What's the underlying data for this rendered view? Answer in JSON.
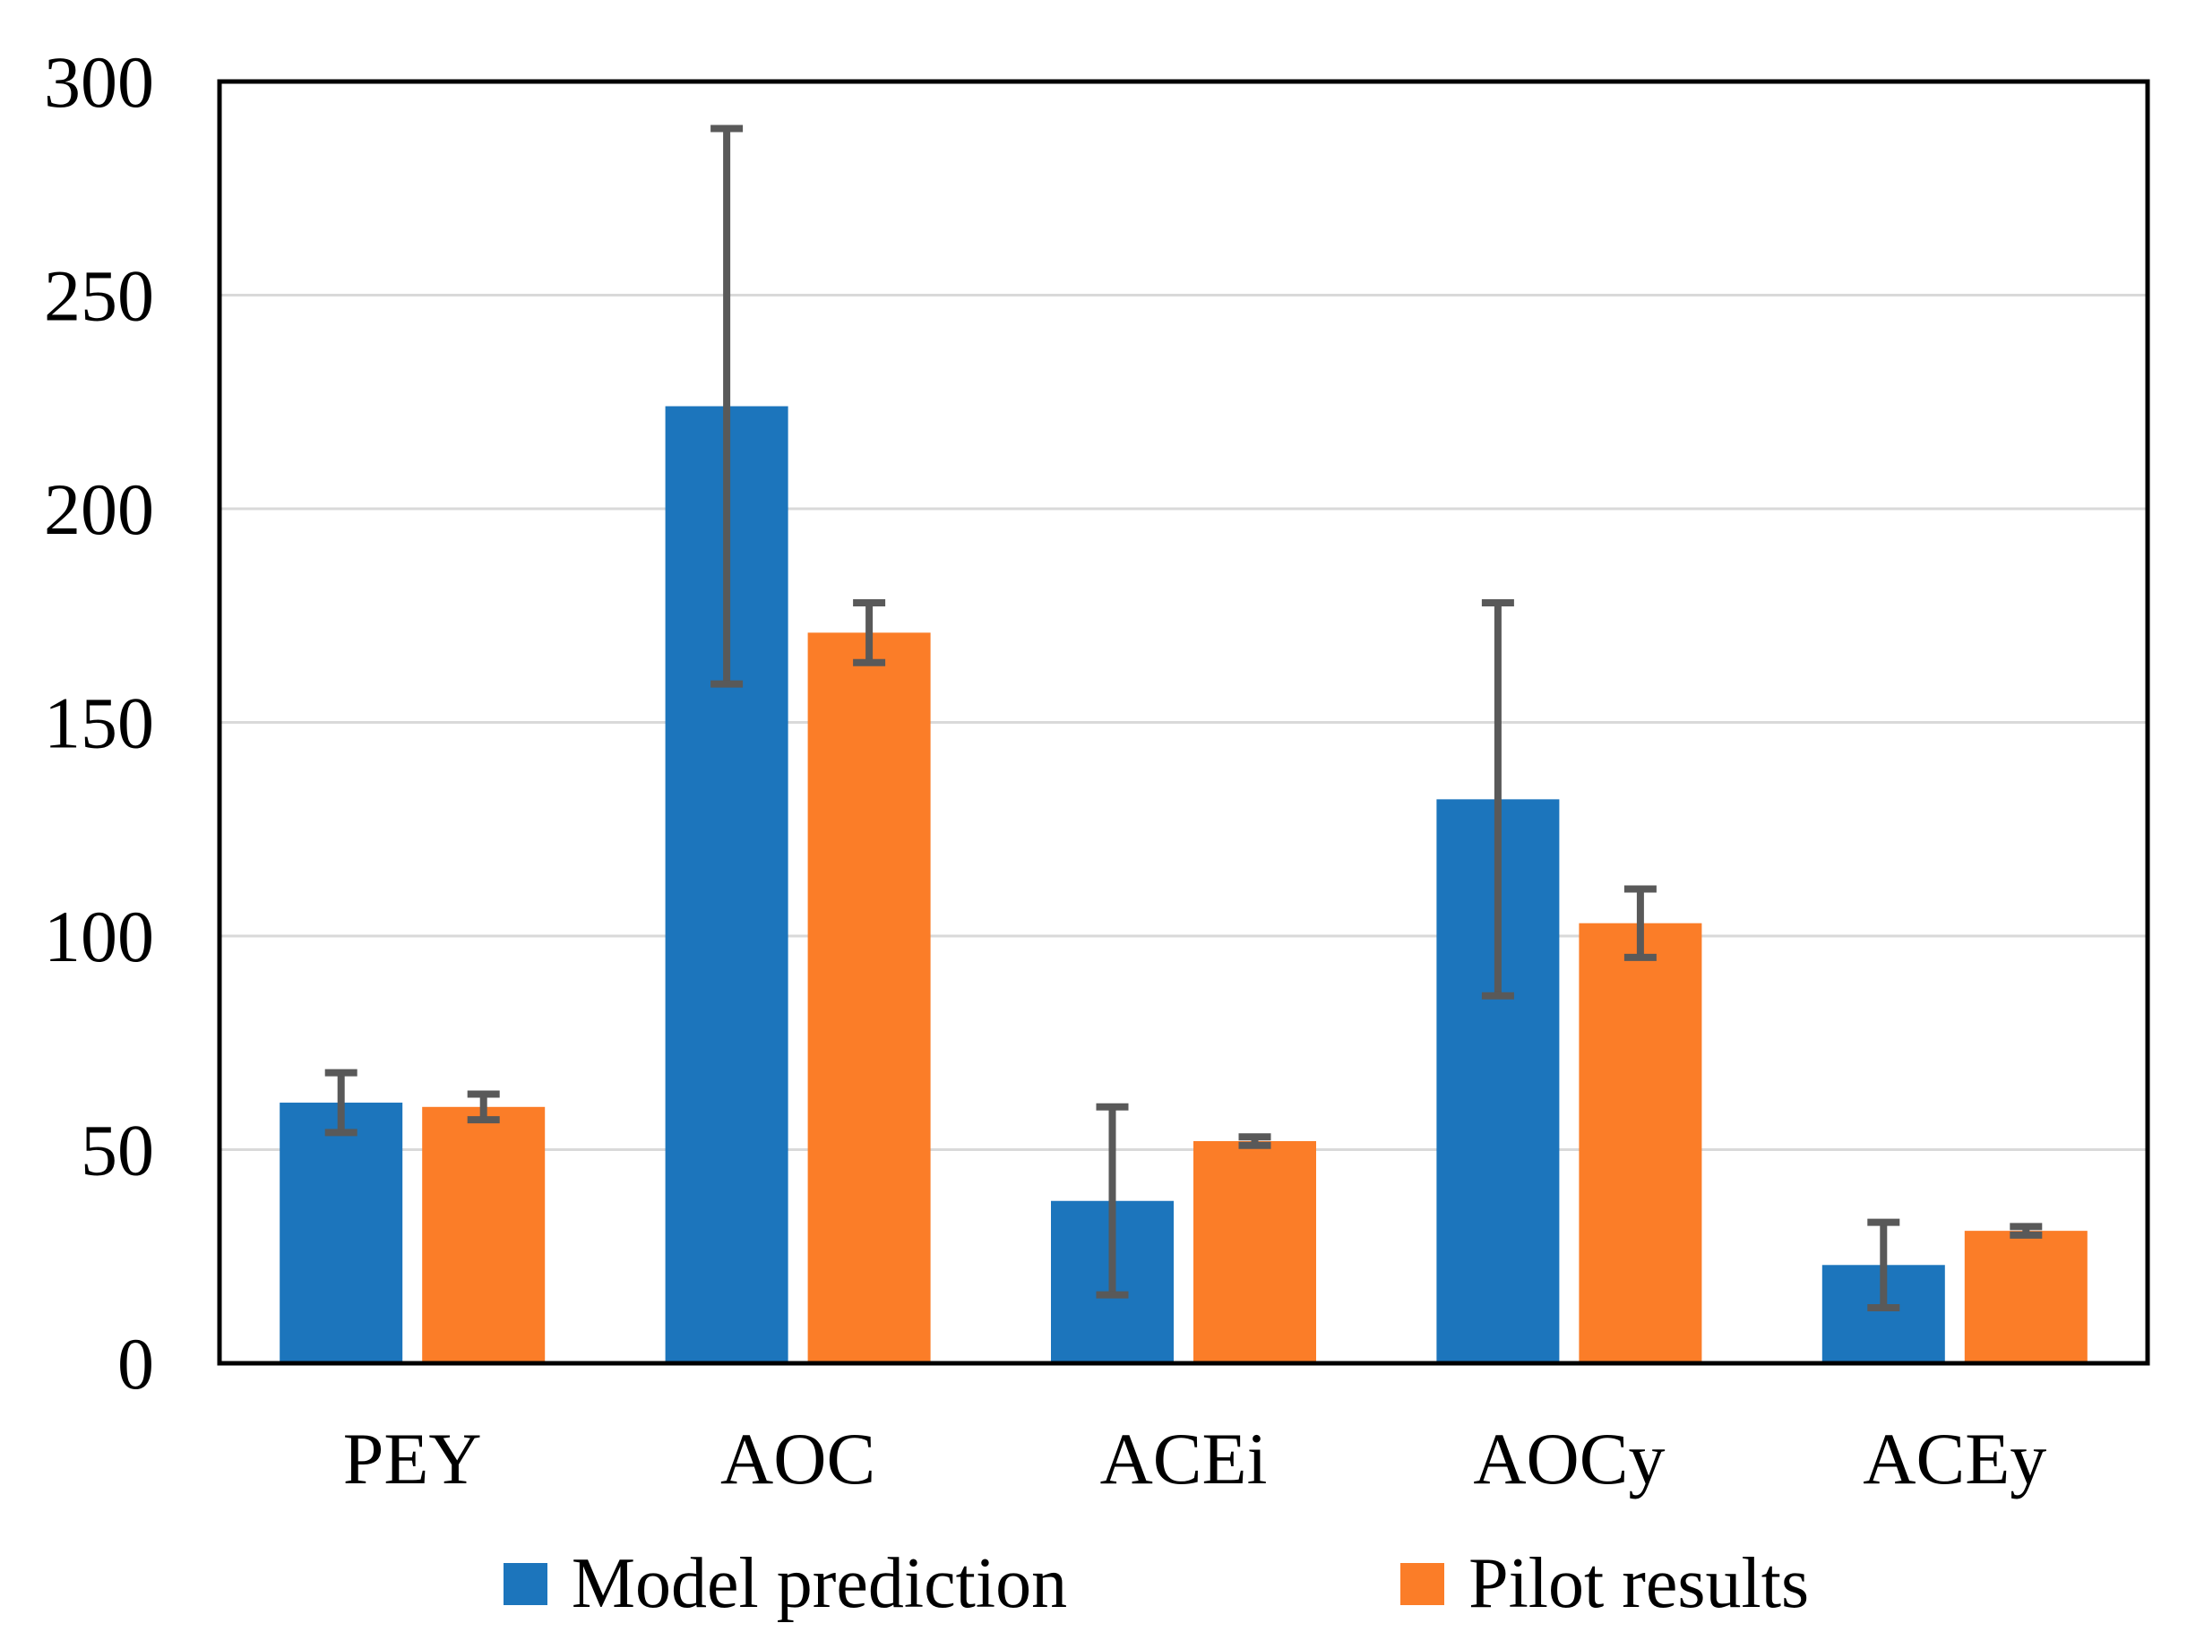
{
  "chart_data": {
    "type": "bar",
    "title": "",
    "xlabel": "",
    "ylabel": "",
    "categories": [
      "PEY",
      "AOC",
      "ACEi",
      "AOCy",
      "ACEy"
    ],
    "series": [
      {
        "name": "Model prediction",
        "color": "#1C75BC",
        "values": [
          61,
          224,
          38,
          132,
          23
        ],
        "errors": [
          7,
          65,
          22,
          46,
          10
        ]
      },
      {
        "name": "Pilot results",
        "color": "#FB7D28",
        "values": [
          60,
          171,
          52,
          103,
          31
        ],
        "errors": [
          3,
          7,
          1,
          8,
          1
        ]
      }
    ],
    "ylim": [
      0,
      300
    ],
    "yticks": [
      0,
      50,
      100,
      150,
      200,
      250,
      300
    ],
    "grid": "horizontal",
    "gridline_color": "#D9D9D9",
    "axis_color": "#000000",
    "error_bar_color": "#595959",
    "legend_position": "bottom"
  }
}
